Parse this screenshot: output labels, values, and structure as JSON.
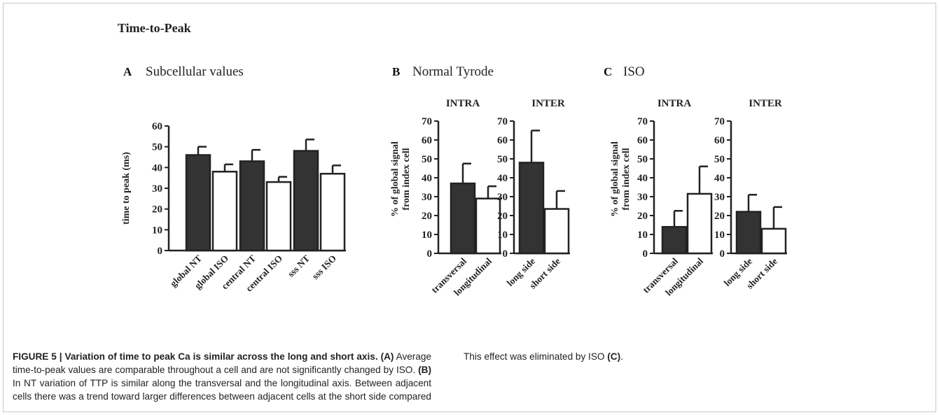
{
  "figure_title": "Time-to-Peak",
  "panels": {
    "A": {
      "letter": "A",
      "title": "Subcellular values"
    },
    "B": {
      "letter": "B",
      "title": "Normal Tyrode"
    },
    "C": {
      "letter": "C",
      "title": "ISO"
    }
  },
  "caption": {
    "fig_label": "FIGURE 5 | ",
    "bold_title": "Variation of time to peak Ca is similar across the long and short axis.",
    "a_ref": "(A)",
    "a_text": " Average time-to-peak values are comparable throughout a cell and are not significantly changed by ISO. ",
    "b_ref": "(B)",
    "b_text": " In NT variation of TTP is similar along the transversal and the longitudinal axis. Between adjacent cells there was a trend toward larger differences between adjacent cells at the short side compared to neighbors at the long side. This effect was eliminated by ISO ",
    "c_ref": "(C)",
    "end": "."
  },
  "colors": {
    "dark_bar": "#333333",
    "light_bar": "#ffffff",
    "axis": "#222222"
  },
  "chart_data": [
    {
      "id": "A",
      "type": "bar",
      "title": "",
      "ylabel": "time to peak (ms)",
      "ylim": [
        0,
        60
      ],
      "yticks": [
        0,
        10,
        20,
        30,
        40,
        50,
        60
      ],
      "categories": [
        "global NT",
        "global ISO",
        "central NT",
        "central ISO",
        "sss NT",
        "sss ISO"
      ],
      "values": [
        46,
        38,
        43,
        33,
        48,
        37
      ],
      "errors": [
        4,
        3.5,
        5.5,
        2.5,
        5.5,
        4
      ],
      "fills": [
        "dark",
        "light",
        "dark",
        "light",
        "dark",
        "light"
      ]
    },
    {
      "id": "B-INTRA",
      "type": "bar",
      "title": "INTRA",
      "ylabel": "% of global signal from index cell",
      "ylim": [
        0,
        70
      ],
      "yticks": [
        0,
        10,
        20,
        30,
        40,
        50,
        60,
        70
      ],
      "categories": [
        "transversal",
        "longitudinal"
      ],
      "values": [
        37,
        29
      ],
      "errors": [
        10.5,
        6.5
      ],
      "fills": [
        "dark",
        "light"
      ]
    },
    {
      "id": "B-INTER",
      "type": "bar",
      "title": "INTER",
      "ylabel": "",
      "ylim": [
        0,
        70
      ],
      "yticks": [
        0,
        10,
        20,
        30,
        40,
        50,
        60,
        70
      ],
      "categories": [
        "long side",
        "short side"
      ],
      "values": [
        48,
        23.5
      ],
      "errors": [
        17,
        9.5
      ],
      "fills": [
        "dark",
        "light"
      ]
    },
    {
      "id": "C-INTRA",
      "type": "bar",
      "title": "INTRA",
      "ylabel": "% of global signal from index cell",
      "ylim": [
        0,
        70
      ],
      "yticks": [
        0,
        10,
        20,
        30,
        40,
        50,
        60,
        70
      ],
      "categories": [
        "transversal",
        "longitudinal"
      ],
      "values": [
        14,
        31.5
      ],
      "errors": [
        8.5,
        14.5
      ],
      "fills": [
        "dark",
        "light"
      ]
    },
    {
      "id": "C-INTER",
      "type": "bar",
      "title": "INTER",
      "ylabel": "",
      "ylim": [
        0,
        70
      ],
      "yticks": [
        0,
        10,
        20,
        30,
        40,
        50,
        60,
        70
      ],
      "categories": [
        "long side",
        "short side"
      ],
      "values": [
        22,
        13
      ],
      "errors": [
        9,
        11.5
      ],
      "fills": [
        "dark",
        "light"
      ]
    }
  ]
}
